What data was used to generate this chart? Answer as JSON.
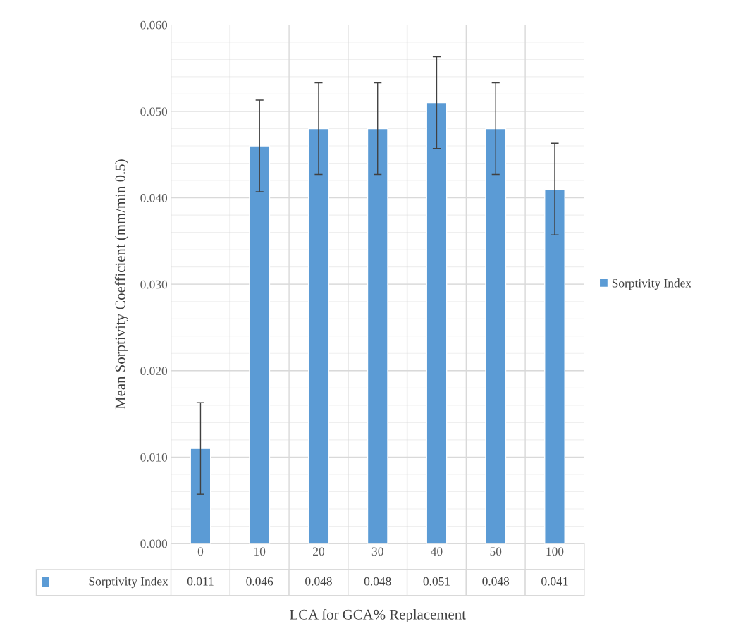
{
  "chart_data": {
    "type": "bar",
    "categories": [
      "0",
      "10",
      "20",
      "30",
      "40",
      "50",
      "100"
    ],
    "series": [
      {
        "name": "Sorptivity Index",
        "color": "#5b9bd5",
        "values": [
          0.011,
          0.046,
          0.048,
          0.048,
          0.051,
          0.048,
          0.041
        ],
        "errors": [
          0.0053,
          0.0053,
          0.0053,
          0.0053,
          0.0053,
          0.0053,
          0.0053
        ]
      }
    ],
    "xlabel": "LCA for GCA% Replacement",
    "ylabel": "Mean Sorptivity Coefficient (mm/min 0.5)",
    "ylim": [
      0,
      0.06
    ],
    "yticks": [
      {
        "value": 0,
        "label": "0.000"
      },
      {
        "value": 0.01,
        "label": "0.010"
      },
      {
        "value": 0.02,
        "label": "0.020"
      },
      {
        "value": 0.03,
        "label": "0.030"
      },
      {
        "value": 0.04,
        "label": "0.040"
      },
      {
        "value": 0.05,
        "label": "0.050"
      },
      {
        "value": 0.06,
        "label": "0.060"
      }
    ],
    "data_labels": true,
    "grid": true,
    "legend": "right"
  }
}
